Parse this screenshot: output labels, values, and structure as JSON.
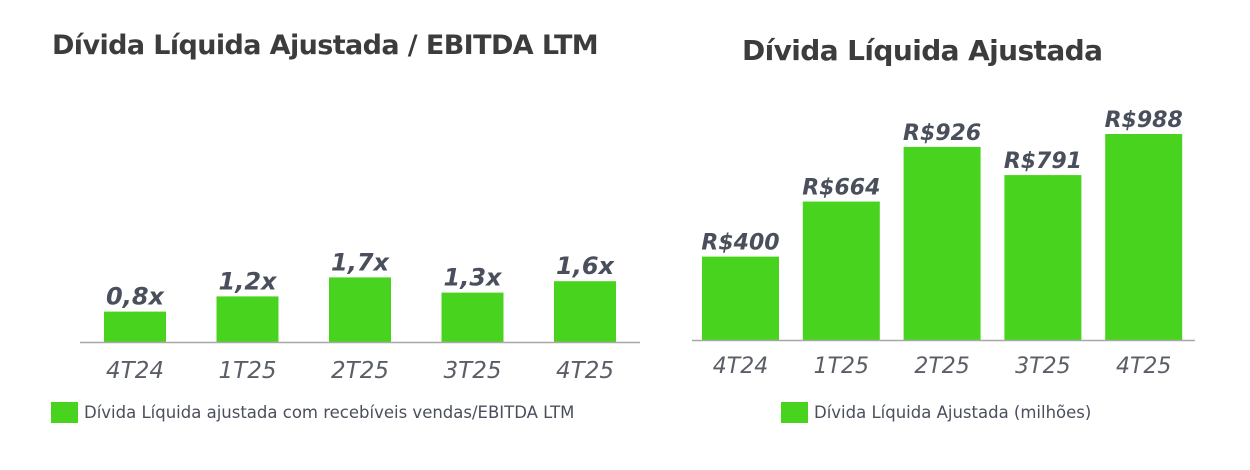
{
  "colors": {
    "bar": "#48d41e",
    "axis": "#a8a8a8",
    "title": "#3c3c3c",
    "label": "#4a4f5c"
  },
  "chart_data": [
    {
      "type": "bar",
      "title": "Dívida Líquida Ajustada / EBITDA LTM",
      "categories": [
        "4T24",
        "1T25",
        "2T25",
        "3T25",
        "4T25"
      ],
      "values": [
        0.8,
        1.2,
        1.7,
        1.3,
        1.6
      ],
      "data_labels": [
        "0,8x",
        "1,2x",
        "1,7x",
        "1,3x",
        "1,6x"
      ],
      "legend": "Dívida Líquida ajustada com recebíveis vendas/EBITDA LTM",
      "legend_position": "bottom-left",
      "xlabel": "",
      "ylabel": "",
      "grid": false
    },
    {
      "type": "bar",
      "title": "Dívida Líquida Ajustada",
      "categories": [
        "4T24",
        "1T25",
        "2T25",
        "3T25",
        "4T25"
      ],
      "values": [
        400,
        664,
        926,
        791,
        988
      ],
      "data_labels": [
        "R$400",
        "R$664",
        "R$926",
        "R$791",
        "R$988"
      ],
      "legend": "Dívida Líquida Ajustada (milhões)",
      "legend_position": "bottom",
      "xlabel": "",
      "ylabel": "",
      "grid": false
    }
  ]
}
